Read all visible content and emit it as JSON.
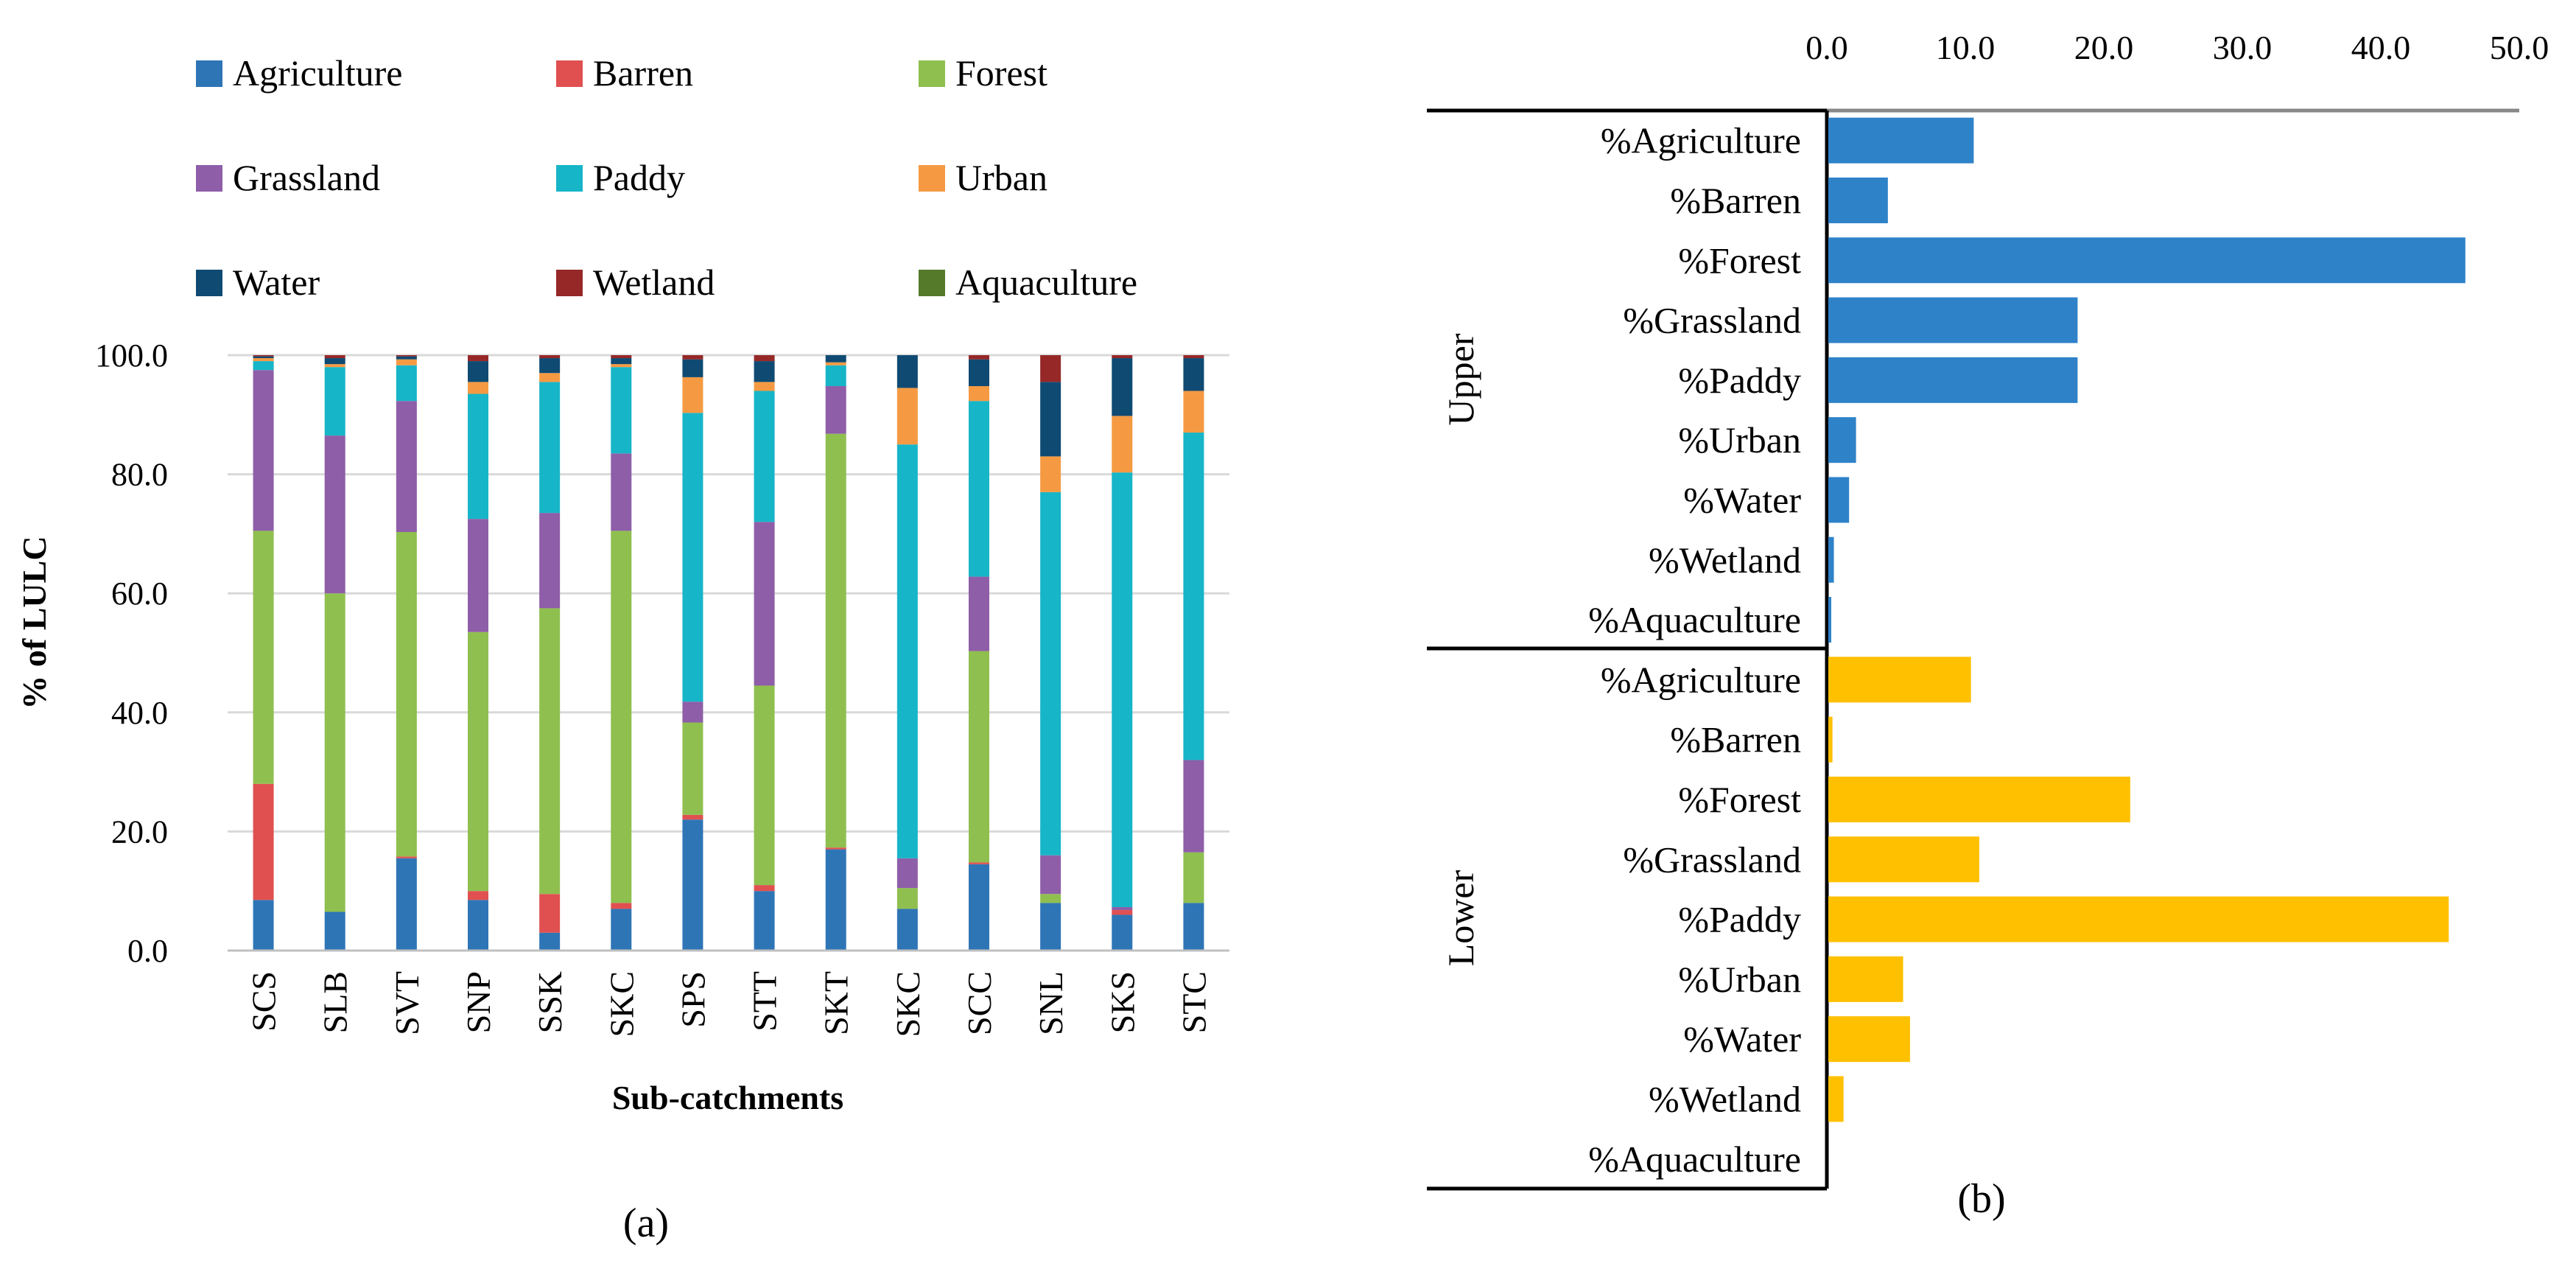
{
  "chart_data": [
    {
      "type": "stacked-bar",
      "panel_label": "(a)",
      "ylabel": "% of LULC",
      "xlabel": "Sub-catchments",
      "ylim": [
        0,
        100
      ],
      "y_ticks": [
        "0.0",
        "20.0",
        "40.0",
        "60.0",
        "80.0",
        "100.0"
      ],
      "grid": true,
      "legend_position": "top",
      "categories": [
        "SCS",
        "SLB",
        "SVT",
        "SNP",
        "SSK",
        "SKC",
        "SPS",
        "STT",
        "SKT",
        "SKC",
        "SCC",
        "SNL",
        "SKS",
        "STC"
      ],
      "series": [
        {
          "name": "Agriculture",
          "color": "#2e75b6",
          "values": [
            8.5,
            6.5,
            15.5,
            8.5,
            3.0,
            7.0,
            22.0,
            10.0,
            17.0,
            7.0,
            14.5,
            8.0,
            6.0,
            8.0
          ]
        },
        {
          "name": "Barren",
          "color": "#e05050",
          "values": [
            19.5,
            0,
            0.3,
            1.5,
            6.5,
            1.0,
            0.8,
            1.0,
            0.3,
            0,
            0.3,
            0,
            0.8,
            0
          ]
        },
        {
          "name": "Forest",
          "color": "#8fbf4f",
          "values": [
            42.5,
            53.5,
            54.5,
            43.5,
            48.0,
            62.5,
            15.5,
            33.5,
            69.5,
            3.5,
            35.5,
            1.5,
            0,
            8.5
          ]
        },
        {
          "name": "Grassland",
          "color": "#8e5ea8",
          "values": [
            27.0,
            26.5,
            22.0,
            19.0,
            16.0,
            13.0,
            3.5,
            27.5,
            8.0,
            5.0,
            12.5,
            6.5,
            0.5,
            15.5
          ]
        },
        {
          "name": "Paddy",
          "color": "#17b5c8",
          "values": [
            1.5,
            11.5,
            6.0,
            21.0,
            22.0,
            14.5,
            48.5,
            22.0,
            3.5,
            69.5,
            29.5,
            61.0,
            73.0,
            55.0
          ]
        },
        {
          "name": "Urban",
          "color": "#f59a42",
          "values": [
            0.5,
            0.5,
            1.0,
            2.0,
            1.5,
            0.5,
            6.0,
            1.5,
            0.5,
            9.5,
            2.5,
            6.0,
            9.5,
            7.0
          ]
        },
        {
          "name": "Water",
          "color": "#0f4a73",
          "values": [
            0.3,
            1.0,
            0.5,
            3.5,
            2.5,
            1.0,
            3.0,
            3.5,
            1.2,
            5.5,
            4.5,
            12.5,
            9.7,
            5.5
          ]
        },
        {
          "name": "Wetland",
          "color": "#962828",
          "values": [
            0.2,
            0.5,
            0.2,
            1.0,
            0.5,
            0.5,
            0.7,
            1.0,
            0,
            0,
            0.7,
            4.5,
            0.5,
            0.5
          ]
        },
        {
          "name": "Aquaculture",
          "color": "#557a2a",
          "values": [
            0,
            0,
            0,
            0,
            0,
            0,
            0,
            0,
            0,
            0,
            0,
            0,
            0,
            0
          ]
        }
      ]
    },
    {
      "type": "bar",
      "orientation": "horizontal",
      "panel_label": "(b)",
      "xlim": [
        0,
        50
      ],
      "x_ticks": [
        "0.0",
        "10.0",
        "20.0",
        "30.0",
        "40.0",
        "50.0"
      ],
      "x_axis_position": "top",
      "groups": [
        {
          "name": "Upper",
          "color": "#2e82c8",
          "categories": [
            "%Agriculture",
            "%Barren",
            "%Forest",
            "%Grassland",
            "%Paddy",
            "%Urban",
            "%Water",
            "%Wetland",
            "%Aquaculture"
          ],
          "values": [
            10.5,
            4.3,
            46.0,
            18.0,
            18.0,
            2.0,
            1.5,
            0.4,
            0.05
          ]
        },
        {
          "name": "Lower",
          "color": "#ffc000",
          "categories": [
            "%Agriculture",
            "%Barren",
            "%Forest",
            "%Grassland",
            "%Paddy",
            "%Urban",
            "%Water",
            "%Wetland",
            "%Aquaculture"
          ],
          "values": [
            10.3,
            0.3,
            21.8,
            10.9,
            44.8,
            5.4,
            5.9,
            1.1,
            0
          ]
        }
      ]
    }
  ]
}
